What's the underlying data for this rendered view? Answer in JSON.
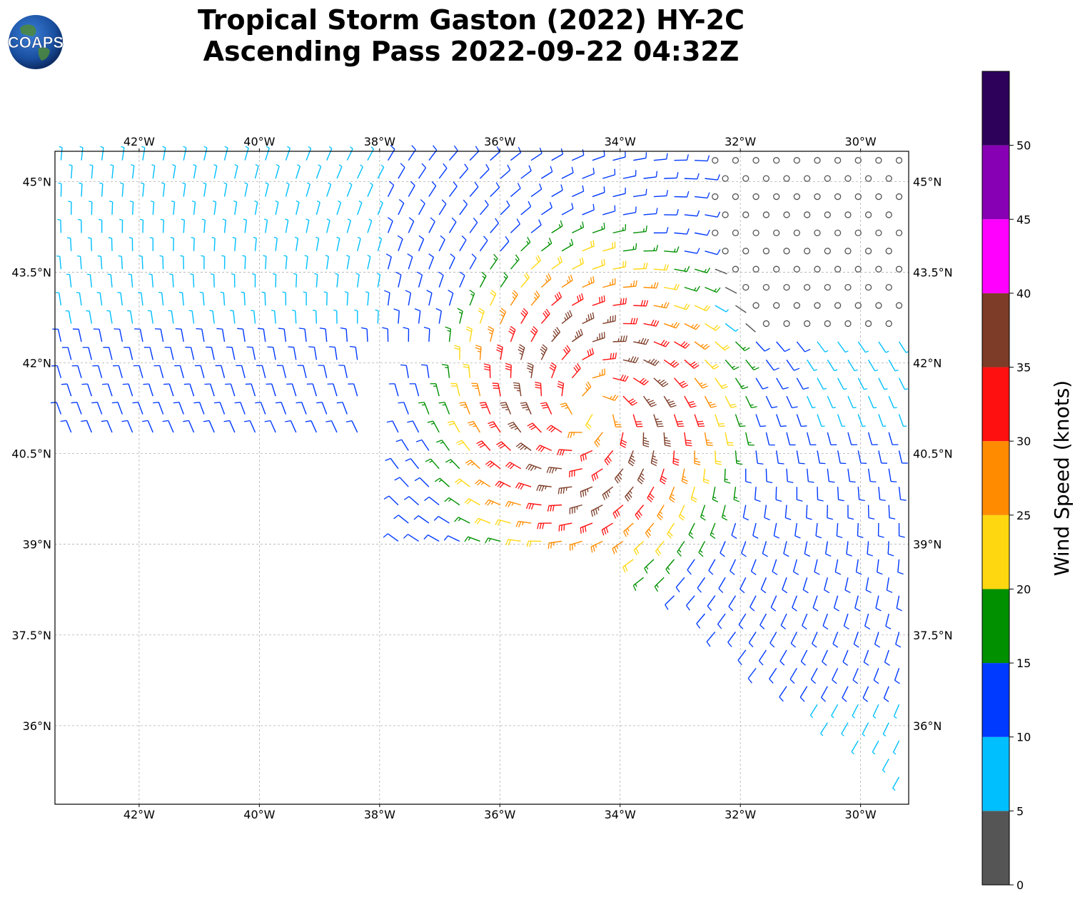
{
  "logo": {
    "text": "COAPS",
    "icon": "coaps-globe-logo"
  },
  "title": {
    "line1": "Tropical Storm Gaston (2022) HY-2C",
    "line2": "Ascending Pass 2022-09-22 04:32Z"
  },
  "map": {
    "lon_range": [
      -43.4,
      -29.2
    ],
    "lat_range": [
      34.7,
      45.5
    ],
    "lon_ticks": [
      {
        "value": -42,
        "label": "42°W"
      },
      {
        "value": -40,
        "label": "40°W"
      },
      {
        "value": -38,
        "label": "38°W"
      },
      {
        "value": -36,
        "label": "36°W"
      },
      {
        "value": -34,
        "label": "34°W"
      },
      {
        "value": -32,
        "label": "32°W"
      },
      {
        "value": -30,
        "label": "30°W"
      }
    ],
    "lat_ticks": [
      {
        "value": 45,
        "label": "45°N"
      },
      {
        "value": 43.5,
        "label": "43.5°N"
      },
      {
        "value": 42,
        "label": "42°N"
      },
      {
        "value": 40.5,
        "label": "40.5°N"
      },
      {
        "value": 39,
        "label": "39°N"
      },
      {
        "value": 37.5,
        "label": "37.5°N"
      },
      {
        "value": 36,
        "label": "36°N"
      }
    ],
    "grid": true,
    "storm_center": {
      "lon": -34.5,
      "lat": 41.2
    },
    "swath": "wind barbs covering the northern half and a south-east strip of the map"
  },
  "colorbar": {
    "label": "Wind Speed (knots)",
    "ticks": [
      "0",
      "5",
      "10",
      "15",
      "20",
      "25",
      "30",
      "35",
      "40",
      "45",
      "50"
    ],
    "bins": [
      {
        "min": 0,
        "max": 5,
        "color": "#555555"
      },
      {
        "min": 5,
        "max": 10,
        "color": "#00bfff"
      },
      {
        "min": 10,
        "max": 15,
        "color": "#0039ff"
      },
      {
        "min": 15,
        "max": 20,
        "color": "#009000"
      },
      {
        "min": 20,
        "max": 25,
        "color": "#ffd710"
      },
      {
        "min": 25,
        "max": 30,
        "color": "#ff8c00"
      },
      {
        "min": 30,
        "max": 35,
        "color": "#ff1010"
      },
      {
        "min": 35,
        "max": 40,
        "color": "#7d3c28"
      },
      {
        "min": 40,
        "max": 45,
        "color": "#ff00ff"
      },
      {
        "min": 45,
        "max": 50,
        "color": "#8800b4"
      },
      {
        "min": 50,
        "max": 55,
        "color": "#2d005a"
      }
    ]
  }
}
